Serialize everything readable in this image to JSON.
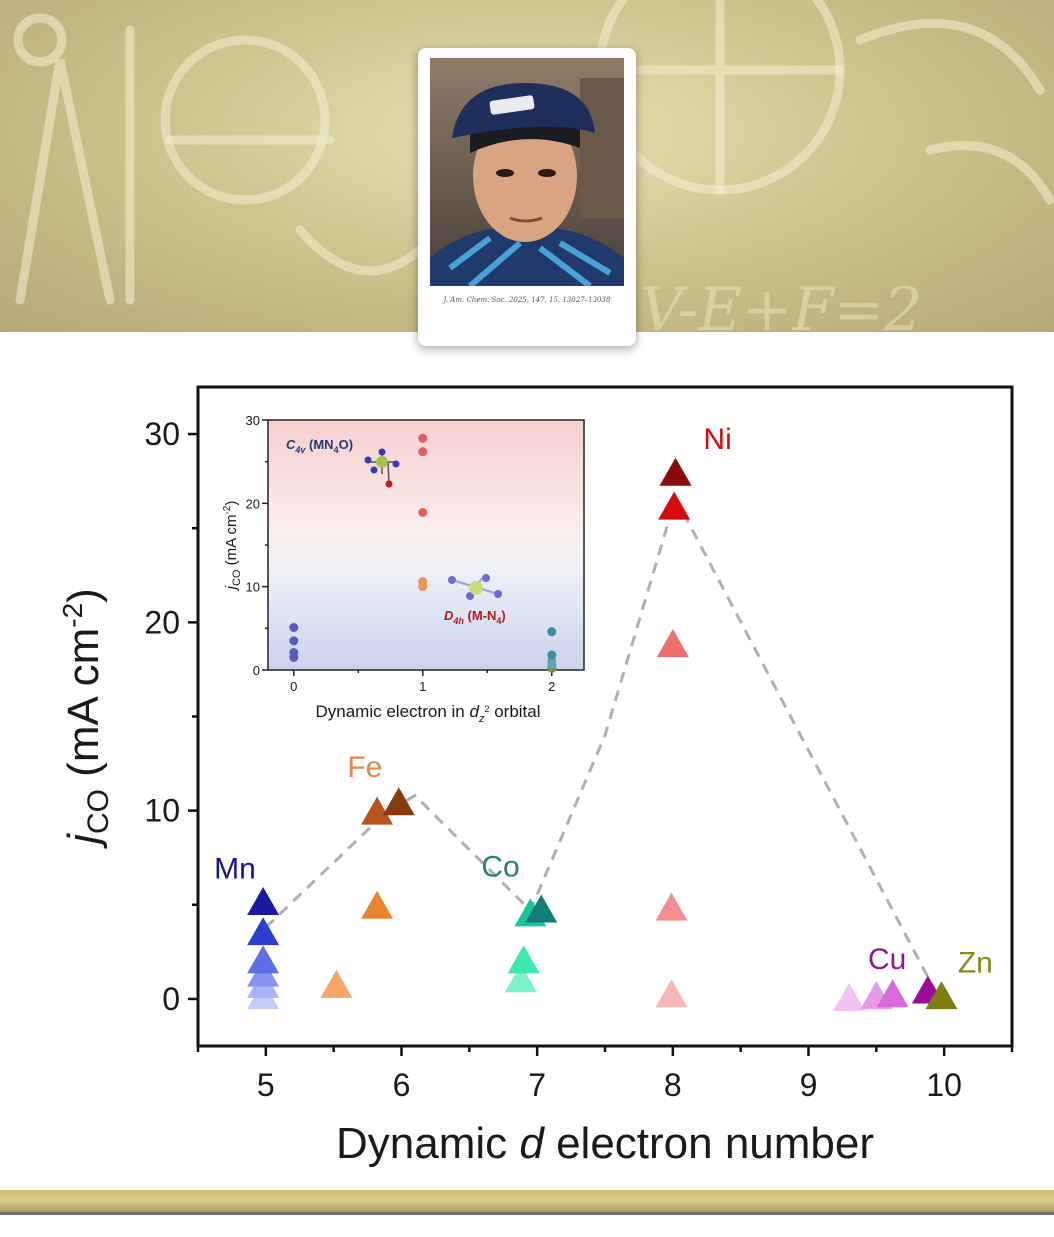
{
  "banner": {
    "citation": "J. Am. Chem. Soc. 2025, 147, 15, 13027–13038"
  },
  "chart_data": {
    "type": "scatter",
    "main": {
      "xlabel_prefix": "Dynamic ",
      "xlabel_italic": "d",
      "xlabel_suffix": " electron number",
      "ylabel_main": "j",
      "ylabel_sub": "CO",
      "ylabel_unit": " (mA cm",
      "ylabel_exp": "-2",
      "ylabel_close": ")",
      "xlim": [
        4.5,
        10.5
      ],
      "ylim": [
        -2.5,
        32.5
      ],
      "xticks": [
        "5",
        "6",
        "7",
        "8",
        "9",
        "10"
      ],
      "xtick_values": [
        5,
        6,
        7,
        8,
        9,
        10
      ],
      "yticks": [
        "0",
        "10",
        "20",
        "30"
      ],
      "ytick_values": [
        0,
        10,
        20,
        30
      ],
      "marker": "triangle-up",
      "series": [
        {
          "label": "Mn",
          "color": "#1a1aa0",
          "label_color": "#14148c",
          "points": [
            [
              4.98,
              0.2
            ],
            [
              4.98,
              0.8
            ],
            [
              4.98,
              1.4
            ],
            [
              4.98,
              2.1
            ],
            [
              4.98,
              3.6
            ],
            [
              4.98,
              5.2
            ]
          ],
          "colors": [
            "#c4caf7",
            "#a9b3f5",
            "#8794ef",
            "#5c6fe6",
            "#2d3fd0",
            "#1a1aa0"
          ]
        },
        {
          "label": "Fe",
          "color": "#e07a3a",
          "label_color": "#e8834a",
          "points": [
            [
              5.52,
              0.8
            ],
            [
              5.82,
              5.0
            ],
            [
              5.82,
              10.0
            ],
            [
              5.98,
              10.5
            ]
          ],
          "colors": [
            "#f5a56b",
            "#e8852f",
            "#b5551c",
            "#8a3a12"
          ]
        },
        {
          "label": "Co",
          "color": "#2a9d8f",
          "label_color": "#25807a",
          "points": [
            [
              6.88,
              1.1
            ],
            [
              6.9,
              2.1
            ],
            [
              6.95,
              4.6
            ],
            [
              7.03,
              4.8
            ]
          ],
          "colors": [
            "#7ef0cc",
            "#3ee6b0",
            "#18c49a",
            "#147d78"
          ]
        },
        {
          "label": "Ni",
          "color": "#d10a0a",
          "label_color": "#d40b0b",
          "points": [
            [
              7.99,
              0.3
            ],
            [
              7.99,
              4.9
            ],
            [
              8.0,
              18.9
            ],
            [
              8.01,
              26.2
            ],
            [
              8.02,
              28.0
            ]
          ],
          "colors": [
            "#f6b7b7",
            "#f09090",
            "#ee6f6f",
            "#d50c0c",
            "#8a0b0b"
          ]
        },
        {
          "label": "Cu",
          "color": "#9a0d9a",
          "label_color": "#8e168e",
          "points": [
            [
              9.3,
              0.1
            ],
            [
              9.5,
              0.2
            ],
            [
              9.62,
              0.3
            ],
            [
              9.88,
              0.5
            ]
          ],
          "colors": [
            "#f2c3f2",
            "#e89ae8",
            "#d96ad9",
            "#9a0d9a"
          ]
        },
        {
          "label": "Zn",
          "color": "#7a7a10",
          "label_color": "#8a8a18",
          "points": [
            [
              9.98,
              0.2
            ]
          ],
          "colors": [
            "#7d7d11"
          ]
        }
      ],
      "trend_line": [
        [
          5.0,
          3.8
        ],
        [
          5.9,
          10.0
        ],
        [
          6.1,
          10.8
        ],
        [
          6.95,
          4.7
        ],
        [
          7.5,
          14.0
        ],
        [
          8.02,
          26.6
        ],
        [
          9.95,
          0.2
        ]
      ]
    },
    "inset": {
      "xlabel_prefix": "Dynamic electron in ",
      "xlabel_italic": "d",
      "xlabel_sub": "z",
      "xlabel_sup": "2",
      "xlabel_suffix": " orbital",
      "ylabel_main": "j",
      "ylabel_sub": "CO",
      "ylabel_unit": " (mA cm",
      "ylabel_exp": "-2",
      "ylabel_close": ")",
      "xlim": [
        -0.2,
        2.25
      ],
      "ylim": [
        0,
        30
      ],
      "xticks": [
        "0",
        "1",
        "2"
      ],
      "xtick_values": [
        0,
        1,
        2
      ],
      "yticks": [
        "0",
        "10",
        "20",
        "30"
      ],
      "ytick_values": [
        0,
        10,
        20,
        30
      ],
      "annotation_top_main": "C",
      "annotation_top_sub": "4v",
      "annotation_top_rest": " (MN",
      "annotation_top_sub2": "4",
      "annotation_top_end": "O)",
      "annotation_bottom_main": "D",
      "annotation_bottom_sub": "4h",
      "annotation_bottom_rest": " (M-N",
      "annotation_bottom_sub2": "4",
      "annotation_bottom_end": ")",
      "points": [
        {
          "x": 0,
          "y": 1.5,
          "color": "#5b5bbf"
        },
        {
          "x": 0,
          "y": 2.1,
          "color": "#5b5bbf"
        },
        {
          "x": 0,
          "y": 3.5,
          "color": "#5b5bbf"
        },
        {
          "x": 0,
          "y": 5.1,
          "color": "#5b5bbf"
        },
        {
          "x": 1,
          "y": 10.0,
          "color": "#e89a55"
        },
        {
          "x": 1,
          "y": 10.6,
          "color": "#e89a55"
        },
        {
          "x": 1,
          "y": 18.9,
          "color": "#e06060"
        },
        {
          "x": 1,
          "y": 26.2,
          "color": "#e06060"
        },
        {
          "x": 1,
          "y": 27.8,
          "color": "#e06060"
        },
        {
          "x": 2,
          "y": 0.2,
          "color": "#8a8a20"
        },
        {
          "x": 2,
          "y": 0.6,
          "color": "#59a7b8"
        },
        {
          "x": 2,
          "y": 1.1,
          "color": "#59a7b8"
        },
        {
          "x": 2,
          "y": 1.8,
          "color": "#3c8ea3"
        },
        {
          "x": 2,
          "y": 4.6,
          "color": "#3c8ea3"
        }
      ]
    }
  }
}
